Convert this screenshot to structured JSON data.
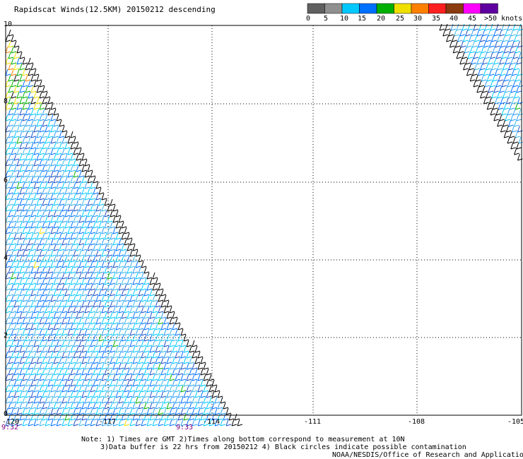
{
  "title": "Rapidscat Winds(12.5KM) 20150212 descending",
  "x_ticks": [
    "-120",
    "-117",
    "-114",
    "-111",
    "-108",
    "-105"
  ],
  "y_ticks": [
    "10",
    "8",
    "6",
    "4",
    "2",
    "0"
  ],
  "times": [
    "9:32",
    "9:33"
  ],
  "colorbar": {
    "labels": [
      "0",
      "5",
      "10",
      "15",
      "20",
      "25",
      "30",
      "35",
      "40",
      "45",
      ">50 knots"
    ],
    "colors": [
      "#606060",
      "#909090",
      "#00c8ff",
      "#0070ff",
      "#00b000",
      "#f0e000",
      "#ff8000",
      "#ff2020",
      "#8b3a10",
      "#ff00ff",
      "#6000a0"
    ]
  },
  "notes": [
    "Note: 1) Times are GMT 2)Times along bottom correspond to measurement at 10N",
    "3)Data buffer is 22 hrs from 20150212 4) Black circles indicate possible contamination",
    "NOAA/NESDIS/Office of Research and Applications"
  ],
  "map": {
    "lon_range": [
      -120,
      -105
    ],
    "lat_range": [
      0,
      10
    ],
    "grid": true
  }
}
